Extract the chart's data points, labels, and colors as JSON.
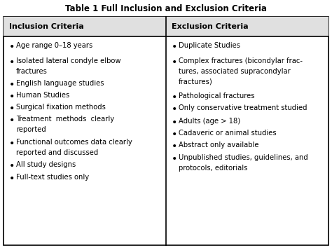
{
  "title": "Table 1 Full Inclusion and Exclusion Criteria",
  "col1_header": "Inclusion Criteria",
  "col2_header": "Exclusion Criteria",
  "col1_items": [
    "Age range 0–18 years",
    "Isolated lateral condyle elbow\nfractures",
    "English language studies",
    "Human Studies",
    "Surgical fixation methods",
    "Treatment  methods  clearly\nreported",
    "Functional outcomes data clearly\nreported and discussed",
    "All study designs",
    "Full-text studies only"
  ],
  "col2_items": [
    "Duplicate Studies",
    "Complex fractures (bicondylar frac-\ntures, associated supracondylar\nfractures)",
    "Pathological fractures",
    "Only conservative treatment studied",
    "Adults (age > 18)",
    "Cadaveric or animal studies",
    "Abstract only available",
    "Unpublished studies, guidelines, and\nprotocols, editorials"
  ],
  "bg_color": "#ffffff",
  "border_color": "#000000",
  "header_bg": "#e0e0e0",
  "text_color": "#000000",
  "title_color": "#000000",
  "font_size": 7.2,
  "header_font_size": 8.0,
  "title_font_size": 8.5
}
